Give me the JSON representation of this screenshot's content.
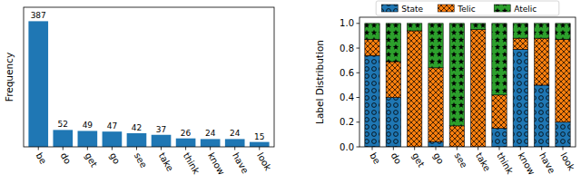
{
  "chart_data": [
    {
      "type": "bar",
      "y_label": "Frequency",
      "categories": [
        "be",
        "do",
        "get",
        "go",
        "see",
        "take",
        "think",
        "know",
        "have",
        "look"
      ],
      "values": [
        387,
        52,
        49,
        47,
        42,
        37,
        26,
        24,
        24,
        15
      ],
      "color": "#1f77b4",
      "ylim": [
        0,
        430
      ],
      "data_labels": true,
      "tick_labels": "x"
    },
    {
      "type": "bar",
      "y_label": "Label Distribution",
      "stacked": true,
      "legend": "top",
      "categories": [
        "be",
        "do",
        "get",
        "go",
        "see",
        "take",
        "think",
        "know",
        "have",
        "look"
      ],
      "series": [
        {
          "name": "State",
          "color": "#1f77b4",
          "marker": "circle",
          "values": [
            0.74,
            0.4,
            0.0,
            0.04,
            0.0,
            0.0,
            0.15,
            0.79,
            0.5,
            0.2
          ]
        },
        {
          "name": "Telic",
          "color": "#ff7f0e",
          "marker": "cross",
          "values": [
            0.13,
            0.29,
            0.94,
            0.6,
            0.17,
            0.95,
            0.27,
            0.09,
            0.38,
            0.67
          ]
        },
        {
          "name": "Atelic",
          "color": "#2ca02c",
          "marker": "star",
          "values": [
            0.13,
            0.31,
            0.06,
            0.36,
            0.83,
            0.05,
            0.58,
            0.12,
            0.12,
            0.13
          ]
        }
      ],
      "ylim": [
        0,
        1.05
      ],
      "yticks": [
        {
          "value": 0,
          "label": "0.0"
        },
        {
          "value": 0.2,
          "label": "0.2"
        },
        {
          "value": 0.4,
          "label": "0.4"
        },
        {
          "value": 0.6,
          "label": "0.6"
        },
        {
          "value": 0.8,
          "label": "0.8"
        },
        {
          "value": 1.0,
          "label": "1.0"
        }
      ]
    }
  ]
}
